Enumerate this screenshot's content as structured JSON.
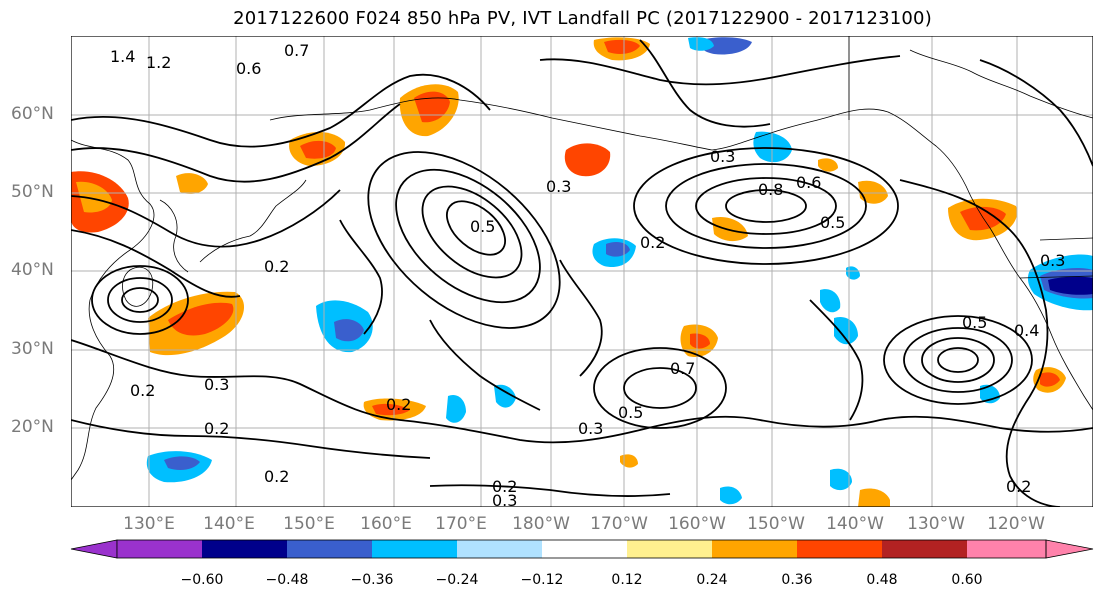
{
  "title": "2017122600 F024 850 hPa PV, IVT Landfall PC (2017122900 - 2017123100)",
  "latitudes": [
    "60°N",
    "50°N",
    "40°N",
    "30°N",
    "20°N"
  ],
  "longitudes": [
    "130°E",
    "140°E",
    "150°E",
    "160°E",
    "170°E",
    "180°W",
    "170°W",
    "160°W",
    "150°W",
    "140°W",
    "130°W",
    "120°W"
  ],
  "contour_labels": [
    "1.4",
    "1.2",
    "0.7",
    "0.6",
    "0.3",
    "0.8",
    "0.6",
    "0.5",
    "0.2",
    "0.3",
    "0.5",
    "0.7",
    "0.4",
    "0.5",
    "0.3",
    "0.2",
    "0.2",
    "0.5",
    "0.3",
    "0.2",
    "0.2",
    "0.2",
    "0.3",
    "0.2",
    "0.2",
    "0.3"
  ],
  "colorbar": {
    "ticks": [
      "−0.60",
      "−0.48",
      "−0.36",
      "−0.24",
      "−0.12",
      "0.12",
      "0.24",
      "0.36",
      "0.48",
      "0.60"
    ],
    "colors": [
      "#9a32cd",
      "#00008b",
      "#3a5fcd",
      "#00bfff",
      "#b0e2ff",
      "#ffffff",
      "#fff08f",
      "#ffa500",
      "#ff4500",
      "#b22222",
      "#ff82ab"
    ]
  }
}
